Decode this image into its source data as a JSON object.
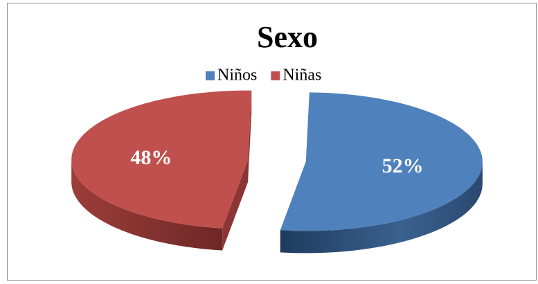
{
  "chart_data": {
    "type": "pie",
    "title": "Sexo",
    "categories": [
      "Niños",
      "Niñas"
    ],
    "values": [
      52,
      48
    ],
    "value_labels": [
      "52%",
      "48%"
    ],
    "colors": [
      "#4f81bd",
      "#c0504d"
    ],
    "legend": "top"
  }
}
